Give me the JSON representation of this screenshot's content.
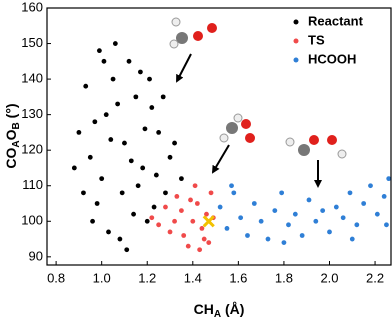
{
  "chart_data": {
    "type": "scatter",
    "xlabel": [
      "CH",
      "A",
      " (Å)"
    ],
    "ylabel": [
      "CO",
      "A",
      "O",
      "B",
      " (°)"
    ],
    "xlim": [
      0.76,
      2.27
    ],
    "ylim": [
      87.7,
      160
    ],
    "xticks": [
      0.8,
      {
        "value": 1,
        "label": "1.0"
      },
      1.2,
      1.4,
      1.6,
      1.8,
      {
        "value": 2,
        "label": "2.0"
      },
      2.2
    ],
    "yticks": [
      90,
      100,
      110,
      120,
      130,
      140,
      150,
      160
    ],
    "legend": "upper right",
    "series": [
      {
        "name": "Reactant",
        "color": "#000000",
        "x": [
          1.1,
          1.02,
          1.18,
          0.95,
          1.25,
          1.05,
          1.12,
          0.98,
          1.2,
          1.08,
          0.9,
          1.3,
          1.15,
          1.0,
          1.22,
          0.93,
          1.28,
          1.06,
          1.14,
          0.88,
          1.03,
          1.17,
          1.32,
          0.97,
          1.24,
          1.09,
          1.01,
          1.19,
          0.92,
          1.27,
          1.11,
          1.13,
          1.04,
          1.21,
          0.96,
          1.35,
          1.07,
          0.99,
          1.16,
          1.23
        ],
        "y": [
          122,
          130,
          115,
          118,
          125,
          140,
          145,
          105,
          100,
          95,
          125,
          118,
          135,
          112,
          132,
          138,
          108,
          150,
          102,
          115,
          97,
          142,
          122,
          128,
          113,
          108,
          145,
          126,
          108,
          135,
          92,
          117,
          123,
          140,
          100,
          112,
          133,
          148,
          110,
          104
        ]
      },
      {
        "name": "TS",
        "color": "#f04a4a",
        "x": [
          1.4,
          1.45,
          1.35,
          1.48,
          1.3,
          1.42,
          1.25,
          1.38,
          1.46,
          1.33,
          1.44,
          1.28,
          1.36,
          1.49,
          1.41,
          1.22,
          1.47,
          1.32,
          1.39,
          1.43
        ],
        "y": [
          100,
          95,
          103,
          108,
          97,
          105,
          99,
          93,
          102,
          107,
          98,
          104,
          96,
          101,
          110,
          101,
          94,
          100,
          106,
          92
        ]
      },
      {
        "name": "HCOOH",
        "color": "#2f7fd6",
        "x": [
          1.52,
          1.55,
          1.58,
          1.61,
          1.64,
          1.67,
          1.7,
          1.73,
          1.76,
          1.79,
          1.82,
          1.85,
          1.88,
          1.91,
          1.94,
          1.97,
          2.0,
          2.03,
          2.06,
          2.09,
          2.12,
          2.15,
          2.18,
          2.21,
          2.24,
          2.26,
          1.57,
          1.8,
          2.1,
          2.25
        ],
        "y": [
          104,
          98,
          108,
          101,
          96,
          105,
          100,
          95,
          103,
          108,
          99,
          102,
          96,
          106,
          100,
          103,
          97,
          104,
          101,
          108,
          99,
          105,
          110,
          102,
          107,
          112,
          110,
          94,
          95,
          99
        ]
      }
    ],
    "marker": {
      "x": 1.47,
      "y": 100,
      "color": "#f2c100"
    }
  }
}
